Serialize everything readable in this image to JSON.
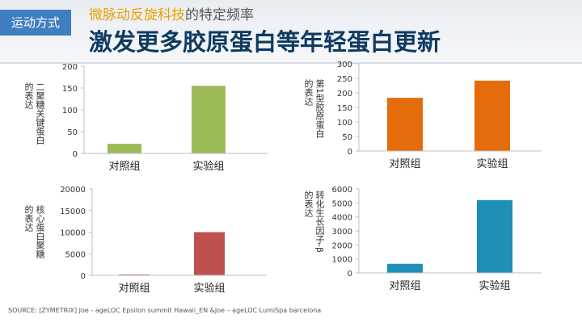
{
  "header": {
    "tag": "运动方式",
    "subtitle_highlight": "微脉动反旋科技",
    "subtitle_rest": "的特定频率",
    "title": "激发更多胶原蛋白等年轻蛋白更新"
  },
  "source": "SOURCE: [ZYMETRIX] Joe - ageLOC Epsilon summit Hawaii_EN &Joe – ageLOC LumiSpa barcelona",
  "chart_data": [
    {
      "type": "bar",
      "ylabel_lines": [
        "二聚糖关键蛋白",
        "的表达"
      ],
      "categories": [
        "对照组",
        "实验组"
      ],
      "values": [
        22,
        155
      ],
      "ylim": [
        0,
        200
      ],
      "ticks": [
        0,
        50,
        100,
        150,
        200
      ],
      "color": "#9bbb59"
    },
    {
      "type": "bar",
      "ylabel_lines": [
        "第1型胶原蛋白",
        "的表达"
      ],
      "categories": [
        "对照组",
        "实验组"
      ],
      "values": [
        183,
        242
      ],
      "ylim": [
        0,
        300
      ],
      "ticks": [
        0,
        50,
        100,
        150,
        200,
        250,
        300
      ],
      "color": "#e46c0a"
    },
    {
      "type": "bar",
      "ylabel_lines": [
        "核心蛋白聚糖",
        "的表达"
      ],
      "categories": [
        "对照组",
        "实验组"
      ],
      "values": [
        200,
        10000
      ],
      "ylim": [
        0,
        20000
      ],
      "ticks": [
        0,
        5000,
        10000,
        15000,
        20000
      ],
      "color": "#c0504d"
    },
    {
      "type": "bar",
      "ylabel_lines": [
        "转化生长因子-β",
        "的表达"
      ],
      "categories": [
        "对照组",
        "实验组"
      ],
      "values": [
        650,
        5200
      ],
      "ylim": [
        0,
        6000
      ],
      "ticks": [
        0,
        1000,
        2000,
        3000,
        4000,
        5000,
        6000
      ],
      "color": "#1f8fb8"
    }
  ]
}
